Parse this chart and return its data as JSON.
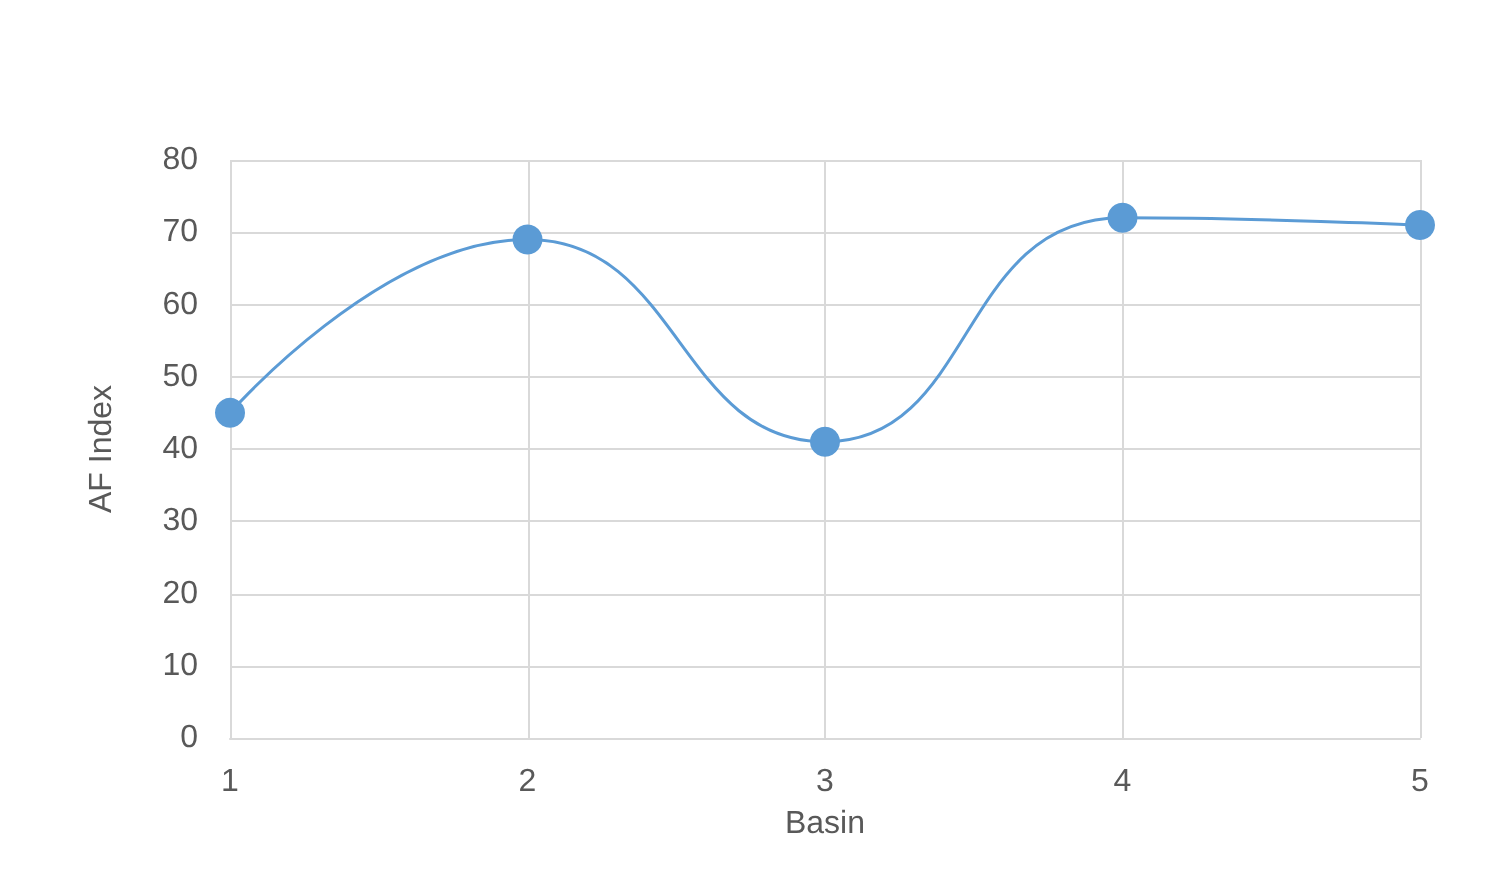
{
  "chart_data": {
    "type": "line",
    "xlabel": "Basin",
    "ylabel": "AF Index",
    "x": [
      1,
      2,
      3,
      4,
      5
    ],
    "series": [
      {
        "color": "#5b9bd5",
        "values": [
          45,
          69,
          41,
          72,
          71
        ]
      }
    ],
    "xlim": [
      1,
      5
    ],
    "xticks": [
      1,
      2,
      3,
      4,
      5
    ],
    "ylim": [
      0,
      80
    ],
    "yticks": [
      0,
      10,
      20,
      30,
      40,
      50,
      60,
      70,
      80
    ],
    "grid": true,
    "marker": "circle",
    "line_style": "solid"
  }
}
